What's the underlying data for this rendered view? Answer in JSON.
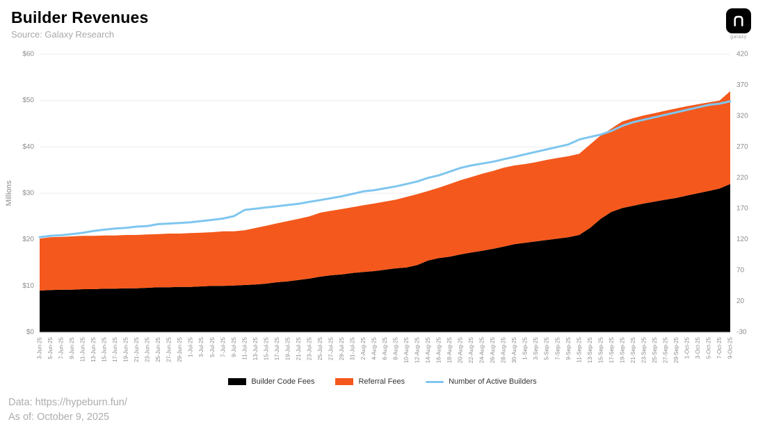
{
  "header": {
    "title": "Builder Revenues",
    "subtitle": "Source: Galaxy Research",
    "logo_text": "galaxy"
  },
  "footer": {
    "data_source": "Data: https://hypeburn.fun/",
    "as_of": "As of: October 9, 2025"
  },
  "chart_data": {
    "type": "area",
    "stacked": true,
    "title": "Builder Revenues",
    "ylabel_left": "Millions",
    "y_left_tick_labels": [
      "$0",
      "$10",
      "$20",
      "$30",
      "$40",
      "$50",
      "$60"
    ],
    "y_left_tick_values": [
      0,
      10,
      20,
      30,
      40,
      50,
      60
    ],
    "y_left_range": [
      0,
      60
    ],
    "y_right_tick_values": [
      -30,
      20,
      70,
      120,
      170,
      220,
      270,
      320,
      370,
      420
    ],
    "y_right_range": [
      -30,
      420
    ],
    "grid": true,
    "legend_position": "bottom",
    "categories": [
      "3-Jun-25",
      "5-Jun-25",
      "7-Jun-25",
      "9-Jun-25",
      "11-Jun-25",
      "13-Jun-25",
      "15-Jun-25",
      "17-Jun-25",
      "19-Jun-25",
      "21-Jun-25",
      "23-Jun-25",
      "25-Jun-25",
      "27-Jun-25",
      "29-Jun-25",
      "1-Jul-25",
      "3-Jul-25",
      "5-Jul-25",
      "7-Jul-25",
      "9-Jul-25",
      "11-Jul-25",
      "13-Jul-25",
      "15-Jul-25",
      "17-Jul-25",
      "19-Jul-25",
      "21-Jul-25",
      "23-Jul-25",
      "25-Jul-25",
      "27-Jul-25",
      "29-Jul-25",
      "31-Jul-25",
      "2-Aug-25",
      "4-Aug-25",
      "6-Aug-25",
      "8-Aug-25",
      "10-Aug-25",
      "12-Aug-25",
      "14-Aug-25",
      "16-Aug-25",
      "18-Aug-25",
      "20-Aug-25",
      "22-Aug-25",
      "24-Aug-25",
      "26-Aug-25",
      "28-Aug-25",
      "30-Aug-25",
      "1-Sep-25",
      "3-Sep-25",
      "5-Sep-25",
      "7-Sep-25",
      "9-Sep-25",
      "11-Sep-25",
      "13-Sep-25",
      "15-Sep-25",
      "17-Sep-25",
      "19-Sep-25",
      "21-Sep-25",
      "23-Sep-25",
      "25-Sep-25",
      "27-Sep-25",
      "29-Sep-25",
      "1-Oct-25",
      "3-Oct-25",
      "5-Oct-25",
      "7-Oct-25",
      "9-Oct-25"
    ],
    "series": [
      {
        "name": "Builder Code Fees",
        "type": "area",
        "axis": "left",
        "color": "#000000",
        "values": [
          9.0,
          9.1,
          9.2,
          9.2,
          9.3,
          9.3,
          9.4,
          9.4,
          9.5,
          9.5,
          9.6,
          9.7,
          9.7,
          9.8,
          9.8,
          9.9,
          10.0,
          10.0,
          10.1,
          10.2,
          10.3,
          10.5,
          10.8,
          11.0,
          11.3,
          11.6,
          12.0,
          12.3,
          12.5,
          12.8,
          13.0,
          13.2,
          13.5,
          13.8,
          14.0,
          14.5,
          15.5,
          16.0,
          16.3,
          16.8,
          17.2,
          17.6,
          18.0,
          18.5,
          19.0,
          19.3,
          19.6,
          19.9,
          20.2,
          20.5,
          21.0,
          22.5,
          24.5,
          26.0,
          26.8,
          27.3,
          27.8,
          28.2,
          28.6,
          29.0,
          29.5,
          30.0,
          30.5,
          31.0,
          32.0
        ]
      },
      {
        "name": "Referral Fees",
        "type": "area",
        "axis": "left",
        "color": "#F4581C",
        "values": [
          11.2,
          11.4,
          11.4,
          11.5,
          11.5,
          11.5,
          11.5,
          11.5,
          11.5,
          11.5,
          11.5,
          11.5,
          11.6,
          11.5,
          11.6,
          11.6,
          11.6,
          11.8,
          11.7,
          11.8,
          12.2,
          12.5,
          12.7,
          13.0,
          13.2,
          13.4,
          13.8,
          13.9,
          14.1,
          14.2,
          14.4,
          14.6,
          14.7,
          14.8,
          15.2,
          15.3,
          15.0,
          15.2,
          15.7,
          16.0,
          16.3,
          16.6,
          16.8,
          17.0,
          17.0,
          17.0,
          17.1,
          17.3,
          17.4,
          17.5,
          17.5,
          18.0,
          18.0,
          18.0,
          18.7,
          18.9,
          19.0,
          19.1,
          19.2,
          19.3,
          19.3,
          19.2,
          19.1,
          19.0,
          20.0
        ]
      },
      {
        "name": "Number of Active Builders",
        "type": "line",
        "axis": "right",
        "color": "#7FC6EF",
        "values": [
          124,
          126,
          127,
          129,
          131,
          134,
          136,
          138,
          139,
          141,
          142,
          145,
          146,
          147,
          148,
          150,
          152,
          154,
          158,
          168,
          170,
          172,
          174,
          176,
          178,
          181,
          184,
          187,
          190,
          194,
          198,
          200,
          203,
          206,
          210,
          214,
          220,
          224,
          230,
          236,
          240,
          243,
          246,
          250,
          254,
          258,
          262,
          266,
          270,
          274,
          282,
          286,
          290,
          296,
          304,
          310,
          314,
          318,
          322,
          326,
          330,
          334,
          338,
          340,
          344
        ]
      }
    ],
    "colors": {
      "grid": "#ececec",
      "axis_line": "#cfcfcf",
      "tick_text": "#8c8c8c"
    }
  }
}
